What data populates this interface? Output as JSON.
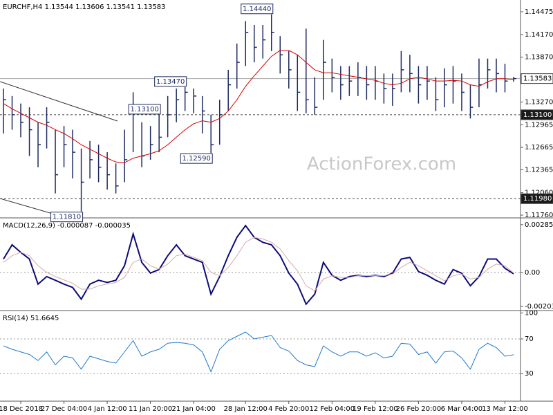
{
  "chart_data": [
    {
      "type": "ohlc",
      "title": "EURCHF,H4 1.13544 1.13606 1.13541 1.13583",
      "watermark": "ActionForex.com",
      "color": "#1c2a5e",
      "categories": [
        null,
        null,
        "18 Dec 2018",
        null,
        null,
        null,
        null,
        "27 Dec 04:00",
        null,
        null,
        null,
        null,
        "4 Jan 12:00",
        null,
        null,
        null,
        null,
        "11 Jan 20:00",
        null,
        null,
        null,
        null,
        "21 Jan 04:00",
        null,
        null,
        null,
        null,
        null,
        "28 Jan 12:00",
        null,
        null,
        null,
        null,
        "4 Feb 20:00",
        null,
        null,
        null,
        null,
        "12 Feb 04:00",
        null,
        null,
        null,
        null,
        "19 Feb 12:00",
        null,
        null,
        null,
        null,
        "26 Feb 20:00",
        null,
        null,
        null,
        null,
        "6 Mar 04:00",
        null,
        null,
        null,
        null,
        "13 Mar 12:00",
        null
      ],
      "high": [
        1.1345,
        1.1335,
        1.1325,
        1.132,
        1.13,
        1.132,
        1.129,
        1.1295,
        1.129,
        1.1265,
        1.1275,
        1.127,
        1.126,
        1.1245,
        1.129,
        1.134,
        1.13,
        1.1295,
        1.131,
        1.1335,
        1.1345,
        1.1347,
        1.1345,
        1.1335,
        1.131,
        1.133,
        1.137,
        1.1405,
        1.1435,
        1.143,
        1.143,
        1.1444,
        1.1415,
        1.1395,
        1.139,
        1.1425,
        1.136,
        1.141,
        1.1385,
        1.1375,
        1.1375,
        1.138,
        1.1375,
        1.1375,
        1.1365,
        1.1365,
        1.1395,
        1.139,
        1.1375,
        1.1375,
        1.136,
        1.1372,
        1.1375,
        1.1365,
        1.135,
        1.1385,
        1.1385,
        1.1385,
        1.1378,
        1.13606
      ],
      "low": [
        1.1285,
        1.129,
        1.128,
        1.1255,
        1.124,
        1.1265,
        1.1205,
        1.124,
        1.1225,
        1.1181,
        1.1225,
        1.122,
        1.121,
        1.1205,
        1.122,
        1.126,
        1.124,
        1.125,
        1.126,
        1.128,
        1.13,
        1.1315,
        1.1312,
        1.1285,
        1.1259,
        1.127,
        1.1315,
        1.1345,
        1.1375,
        1.138,
        1.1385,
        1.1395,
        1.1365,
        1.1345,
        1.1315,
        1.1312,
        1.131,
        1.133,
        1.134,
        1.133,
        1.1335,
        1.1335,
        1.133,
        1.133,
        1.1325,
        1.1322,
        1.134,
        1.134,
        1.1325,
        1.133,
        1.1315,
        1.132,
        1.1325,
        1.1315,
        1.1305,
        1.132,
        1.1345,
        1.134,
        1.134,
        1.13541
      ],
      "close": [
        1.133,
        1.131,
        1.13,
        1.129,
        1.127,
        1.13,
        1.123,
        1.127,
        1.126,
        1.122,
        1.125,
        1.124,
        1.123,
        1.1215,
        1.125,
        1.132,
        1.1255,
        1.127,
        1.128,
        1.131,
        1.133,
        1.134,
        1.1335,
        1.1315,
        1.127,
        1.131,
        1.135,
        1.138,
        1.142,
        1.14,
        1.141,
        1.142,
        1.139,
        1.137,
        1.134,
        1.133,
        1.132,
        1.138,
        1.136,
        1.135,
        1.1355,
        1.136,
        1.135,
        1.1355,
        1.1345,
        1.1345,
        1.137,
        1.1365,
        1.135,
        1.1355,
        1.133,
        1.135,
        1.1355,
        1.134,
        1.132,
        1.135,
        1.137,
        1.1365,
        1.1355,
        1.13583
      ],
      "ma": {
        "color": "#d40000",
        "values": [
          1.1325,
          1.1318,
          1.1312,
          1.1306,
          1.13,
          1.1296,
          1.129,
          1.1285,
          1.1278,
          1.127,
          1.1264,
          1.1258,
          1.1252,
          1.1247,
          1.1246,
          1.1252,
          1.1255,
          1.1258,
          1.1262,
          1.127,
          1.128,
          1.129,
          1.1298,
          1.1302,
          1.13,
          1.1305,
          1.1315,
          1.133,
          1.1348,
          1.1362,
          1.1375,
          1.1388,
          1.1396,
          1.1396,
          1.139,
          1.138,
          1.137,
          1.1366,
          1.1366,
          1.1364,
          1.1362,
          1.136,
          1.1358,
          1.1356,
          1.1352,
          1.135,
          1.1352,
          1.1358,
          1.136,
          1.1358,
          1.1355,
          1.1355,
          1.1356,
          1.1355,
          1.135,
          1.1348,
          1.1354,
          1.1358,
          1.1358,
          1.1357
        ]
      },
      "ylim": [
        1.11742,
        1.14632
      ],
      "yticks": [
        1.14475,
        {
          "value": 1.1417,
          "label": "1.14170"
        },
        {
          "value": 1.1387,
          "label": "1.13870"
        },
        {
          "value": 1.1327,
          "label": "1.13270"
        },
        1.12965,
        1.12665,
        1.12365,
        {
          "value": 1.1206,
          "label": "1.12060"
        },
        {
          "value": 1.1176,
          "label": "1.11760"
        }
      ],
      "hlines": [
        {
          "value": 1.13583,
          "style": "solid"
        },
        {
          "value": 1.131,
          "label": "1.13100",
          "style": "dashed"
        },
        {
          "value": 1.1198,
          "label": "1.11980",
          "style": "dashed"
        }
      ],
      "annotations": [
        {
          "value": 1.1444,
          "label": "1.14440"
        },
        {
          "value": 1.1347,
          "label": "1.13470"
        },
        {
          "value": 1.131,
          "label": "1.13100"
        },
        {
          "value": 1.1259,
          "label": "1.12590"
        },
        {
          "value": 1.1181,
          "label": "1.11810"
        }
      ]
    },
    {
      "type": "line",
      "title": "MACD(12,26,9) -0.000087 -0.000035",
      "series": [
        {
          "color": "#0b0b7a",
          "values": [
            0.0008,
            0.00165,
            0.0012,
            0.0008,
            -0.0007,
            -0.00025,
            -0.00047,
            -0.0007,
            -0.0009,
            -0.0016,
            -0.0007,
            -0.00047,
            -0.0006,
            -0.00047,
            0.0004,
            0.0023,
            0.0006,
            -4e-05,
            0.00017,
            0.001,
            0.00165,
            0.001,
            0.0008,
            0.0006,
            -0.0013,
            -0.00025,
            0.001,
            0.0021,
            0.0028,
            0.0021,
            0.0018,
            0.00165,
            0.001,
            -4e-05,
            -0.0007,
            -0.0019,
            -0.0013,
            0.0006,
            -0.00017,
            -0.00047,
            -0.00025,
            -0.00017,
            -0.00025,
            -0.00017,
            -0.00025,
            -5e-05,
            0.0008,
            0.0009,
            5e-05,
            -0.00017,
            -0.00047,
            -0.0007,
            0.00017,
            -5e-05,
            -0.0008,
            -0.00025,
            0.0008,
            0.0008,
            0.00025,
            -8.7e-05
          ]
        },
        {
          "color": "#d8a8a8",
          "values": [
            0.0006,
            0.001,
            0.0012,
            0.001,
            0.0004,
            0,
            -0.00025,
            -0.00045,
            -0.00065,
            -0.001,
            -0.001,
            -0.0008,
            -0.0007,
            -0.0006,
            -0.0003,
            0.0006,
            0.0008,
            0.0004,
            0.0002,
            0.0005,
            0.001,
            0.0011,
            0.0009,
            0.0007,
            0,
            -0.0002,
            0.0003,
            0.001,
            0.0018,
            0.0021,
            0.002,
            0.0018,
            0.0014,
            0.0007,
            0.0001,
            -0.0008,
            -0.0011,
            -0.0004,
            -0.0002,
            -0.0003,
            -0.0003,
            -0.0002,
            -0.0002,
            -0.0002,
            -0.0002,
            -0.0001,
            0.0003,
            0.0006,
            0.0004,
            0.0001,
            -0.0002,
            -0.0005,
            -0.0002,
            -0.0001,
            -0.0004,
            -0.0003,
            0.0002,
            0.0005,
            0.0004,
            -3.5e-05
          ]
        }
      ],
      "ylim": [
        -0.00224,
        0.00322
      ],
      "yticks": [
        0.002852,
        {
          "value": 0,
          "label": "0.00"
        },
        -0.00203
      ],
      "levels": [
        0
      ]
    },
    {
      "type": "line",
      "title": "RSI(14) 51.6645",
      "series": [
        {
          "color": "#1e78d0",
          "values": [
            62,
            58,
            55,
            52,
            45,
            55,
            40,
            50,
            48,
            35,
            50,
            47,
            44,
            42,
            55,
            68,
            50,
            55,
            58,
            65,
            66,
            65,
            63,
            55,
            32,
            58,
            68,
            73,
            78,
            70,
            72,
            74,
            60,
            56,
            45,
            40,
            38,
            62,
            55,
            50,
            55,
            55,
            50,
            54,
            48,
            50,
            65,
            64,
            52,
            55,
            42,
            55,
            56,
            48,
            35,
            58,
            65,
            60,
            50,
            51.6645
          ]
        }
      ],
      "ylim": [
        -2,
        102
      ],
      "yticks": [
        100,
        70,
        30
      ],
      "levels": [
        70,
        30
      ]
    }
  ]
}
